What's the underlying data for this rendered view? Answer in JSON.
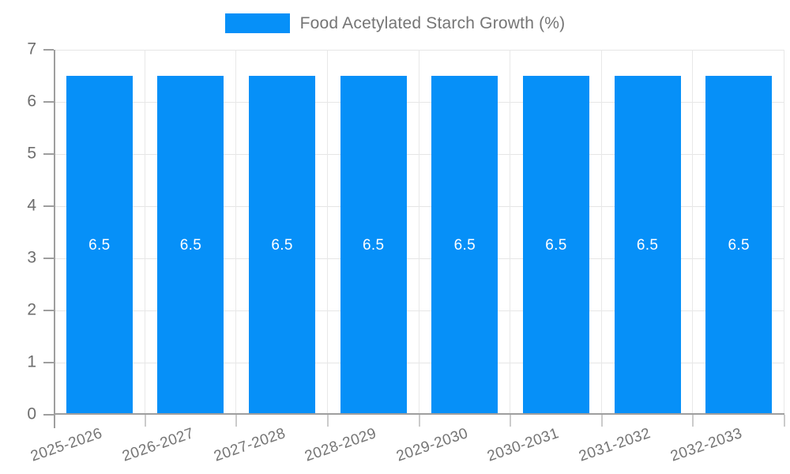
{
  "legend": {
    "label": "Food Acetylated Starch Growth (%)",
    "marker_color": "#0690F8"
  },
  "colors": {
    "bar": "#0690F8",
    "grid": "#E6E6E6",
    "axis": "#9E9E9E",
    "minor_tick": "#CBCBCB",
    "y_label_text": "#6E6E6E",
    "x_label_text": "#757575",
    "legend_text": "#757575",
    "value_label_text": "#FFFFFF",
    "background": "#FFFFFF"
  },
  "chart_data": {
    "type": "bar",
    "title": "Food Acetylated Starch Growth (%)",
    "series_name": "Food Acetylated Starch Growth (%)",
    "categories": [
      "2025-2026",
      "2026-2027",
      "2027-2028",
      "2028-2029",
      "2029-2030",
      "2030-2031",
      "2031-2032",
      "2032-2033"
    ],
    "values": [
      6.5,
      6.5,
      6.5,
      6.5,
      6.5,
      6.5,
      6.5,
      6.5
    ],
    "value_labels": [
      "6.5",
      "6.5",
      "6.5",
      "6.5",
      "6.5",
      "6.5",
      "6.5",
      "6.5"
    ],
    "xlabel": "",
    "ylabel": "",
    "ylim": [
      0,
      7
    ],
    "yticks": [
      0,
      1,
      2,
      3,
      4,
      5,
      6,
      7
    ],
    "grid": true,
    "legend_position": "top",
    "value_label_position": "middle-of-bar",
    "xtick_rotation_deg": -19
  }
}
